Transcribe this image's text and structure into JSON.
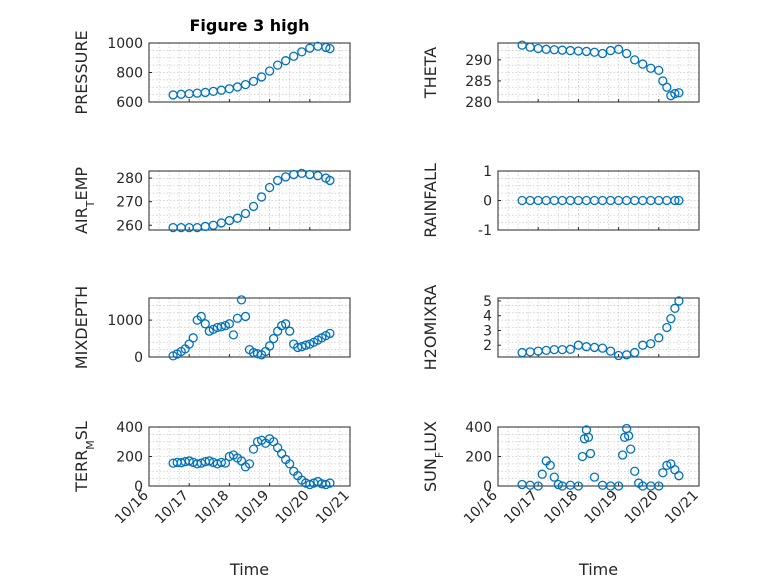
{
  "figure": {
    "title": "Figure 3 high"
  },
  "colors": {
    "marker": "#0072bd",
    "axis": "#262626",
    "grid": "#c8c8c8"
  },
  "x_axis": {
    "range": [
      "10/16",
      "10/21"
    ],
    "ticks": [
      "10/16",
      "10/17",
      "10/18",
      "10/19",
      "10/20",
      "10/21"
    ],
    "tick_positions": [
      16,
      17,
      18,
      19,
      20,
      21
    ],
    "label": "Time"
  },
  "chart_data": [
    {
      "type": "scatter",
      "title": "Figure 3 high",
      "ylabel": "PRESSURE",
      "ylim": [
        600,
        1000
      ],
      "yticks": [
        600,
        800,
        1000
      ],
      "grid": "minor",
      "x": [
        16.6,
        16.8,
        17.0,
        17.2,
        17.4,
        17.6,
        17.8,
        18.0,
        18.2,
        18.4,
        18.6,
        18.8,
        19.0,
        19.2,
        19.4,
        19.6,
        19.8,
        20.0,
        20.2,
        20.4,
        20.5
      ],
      "y": [
        648,
        652,
        656,
        660,
        665,
        672,
        680,
        690,
        702,
        718,
        740,
        770,
        810,
        850,
        880,
        910,
        940,
        965,
        978,
        970,
        962
      ]
    },
    {
      "type": "scatter",
      "ylabel": "THETA",
      "ylim": [
        280,
        294
      ],
      "yticks": [
        280,
        285,
        290
      ],
      "grid": "minor",
      "x": [
        16.6,
        16.8,
        17.0,
        17.2,
        17.4,
        17.6,
        17.8,
        18.0,
        18.2,
        18.4,
        18.6,
        18.8,
        19.0,
        19.2,
        19.4,
        19.6,
        19.8,
        20.0,
        20.1,
        20.2,
        20.3,
        20.4,
        20.5
      ],
      "y": [
        293.5,
        293,
        292.7,
        292.5,
        292.4,
        292.3,
        292.2,
        292.1,
        292,
        291.8,
        291.5,
        292.2,
        292.5,
        291.5,
        290,
        289,
        288,
        287.5,
        285,
        283.5,
        281.5,
        282,
        282.2
      ]
    },
    {
      "type": "scatter",
      "ylabel": "AIR_TEMP",
      "ylim": [
        258,
        283
      ],
      "yticks": [
        260,
        270,
        280
      ],
      "grid": "minor",
      "x": [
        16.6,
        16.8,
        17.0,
        17.2,
        17.4,
        17.6,
        17.8,
        18.0,
        18.2,
        18.4,
        18.6,
        18.8,
        19.0,
        19.2,
        19.4,
        19.6,
        19.8,
        20.0,
        20.2,
        20.4,
        20.5
      ],
      "y": [
        259,
        259,
        259,
        259,
        259.5,
        260,
        261,
        262,
        263,
        265,
        268,
        272,
        276,
        279,
        280.5,
        281.5,
        282,
        281.5,
        281,
        280,
        279
      ]
    },
    {
      "type": "scatter",
      "ylabel": "RAINFALL",
      "ylim": [
        -1,
        1
      ],
      "yticks": [
        -1,
        0,
        1
      ],
      "grid": "minor",
      "x": [
        16.6,
        16.8,
        17.0,
        17.2,
        17.4,
        17.6,
        17.8,
        18.0,
        18.2,
        18.4,
        18.6,
        18.8,
        19.0,
        19.2,
        19.4,
        19.6,
        19.8,
        20.0,
        20.2,
        20.4,
        20.5
      ],
      "y": [
        0,
        0,
        0,
        0,
        0,
        0,
        0,
        0,
        0,
        0,
        0,
        0,
        0,
        0,
        0,
        0,
        0,
        0,
        0,
        0,
        0
      ]
    },
    {
      "type": "scatter",
      "ylabel": "MIXDEPTH",
      "ylim": [
        0,
        1600
      ],
      "yticks": [
        0,
        1000
      ],
      "grid": "minor",
      "x": [
        16.6,
        16.7,
        16.8,
        16.9,
        17.0,
        17.1,
        17.2,
        17.3,
        17.4,
        17.5,
        17.6,
        17.7,
        17.8,
        17.9,
        18.0,
        18.1,
        18.2,
        18.3,
        18.4,
        18.5,
        18.6,
        18.7,
        18.8,
        18.9,
        19.0,
        19.1,
        19.2,
        19.3,
        19.4,
        19.5,
        19.6,
        19.7,
        19.8,
        19.9,
        20.0,
        20.1,
        20.2,
        20.3,
        20.4,
        20.5
      ],
      "y": [
        30,
        80,
        150,
        220,
        350,
        520,
        1000,
        1100,
        900,
        700,
        750,
        800,
        820,
        850,
        900,
        600,
        1050,
        1550,
        1100,
        200,
        120,
        90,
        60,
        150,
        300,
        500,
        700,
        850,
        900,
        700,
        350,
        260,
        280,
        320,
        350,
        400,
        460,
        520,
        580,
        640
      ]
    },
    {
      "type": "scatter",
      "ylabel": "H2OMIXRA",
      "ylim": [
        1.2,
        5.2
      ],
      "yticks": [
        2,
        3,
        4,
        5
      ],
      "grid": "minor",
      "x": [
        16.6,
        16.8,
        17.0,
        17.2,
        17.4,
        17.6,
        17.8,
        18.0,
        18.2,
        18.4,
        18.6,
        18.8,
        19.0,
        19.2,
        19.4,
        19.6,
        19.8,
        20.0,
        20.2,
        20.3,
        20.4,
        20.5
      ],
      "y": [
        1.5,
        1.55,
        1.6,
        1.65,
        1.7,
        1.7,
        1.72,
        2.0,
        1.9,
        1.85,
        1.8,
        1.6,
        1.3,
        1.35,
        1.5,
        2.0,
        2.1,
        2.5,
        3.2,
        3.8,
        4.5,
        5.0
      ]
    },
    {
      "type": "scatter",
      "ylabel": "TERR_MSL",
      "ylim": [
        0,
        400
      ],
      "yticks": [
        0,
        200,
        400
      ],
      "grid": "minor",
      "x": [
        16.6,
        16.7,
        16.8,
        16.9,
        17.0,
        17.1,
        17.2,
        17.3,
        17.4,
        17.5,
        17.6,
        17.7,
        17.8,
        17.9,
        18.0,
        18.1,
        18.2,
        18.3,
        18.4,
        18.5,
        18.6,
        18.7,
        18.8,
        18.9,
        19.0,
        19.1,
        19.2,
        19.3,
        19.4,
        19.5,
        19.6,
        19.7,
        19.8,
        19.9,
        20.0,
        20.1,
        20.2,
        20.3,
        20.4,
        20.5
      ],
      "y": [
        155,
        160,
        158,
        165,
        170,
        160,
        150,
        155,
        165,
        170,
        160,
        150,
        160,
        155,
        200,
        210,
        190,
        170,
        130,
        150,
        250,
        300,
        310,
        290,
        320,
        300,
        260,
        220,
        180,
        150,
        100,
        70,
        40,
        20,
        10,
        20,
        30,
        15,
        10,
        20
      ]
    },
    {
      "type": "scatter",
      "ylabel": "SUN_FLUX",
      "ylim": [
        0,
        400
      ],
      "yticks": [
        0,
        200,
        400
      ],
      "grid": "minor",
      "x": [
        16.6,
        16.8,
        17.0,
        17.1,
        17.2,
        17.3,
        17.4,
        17.5,
        17.6,
        17.8,
        18.0,
        18.1,
        18.15,
        18.2,
        18.25,
        18.3,
        18.4,
        18.6,
        18.8,
        19.0,
        19.1,
        19.15,
        19.2,
        19.25,
        19.3,
        19.4,
        19.5,
        19.6,
        19.8,
        20.0,
        20.1,
        20.2,
        20.3,
        20.4,
        20.5
      ],
      "y": [
        10,
        5,
        0,
        80,
        170,
        140,
        60,
        10,
        0,
        5,
        0,
        200,
        320,
        380,
        330,
        220,
        60,
        5,
        0,
        0,
        210,
        330,
        390,
        340,
        250,
        100,
        20,
        0,
        0,
        0,
        90,
        140,
        150,
        110,
        70
      ]
    }
  ]
}
